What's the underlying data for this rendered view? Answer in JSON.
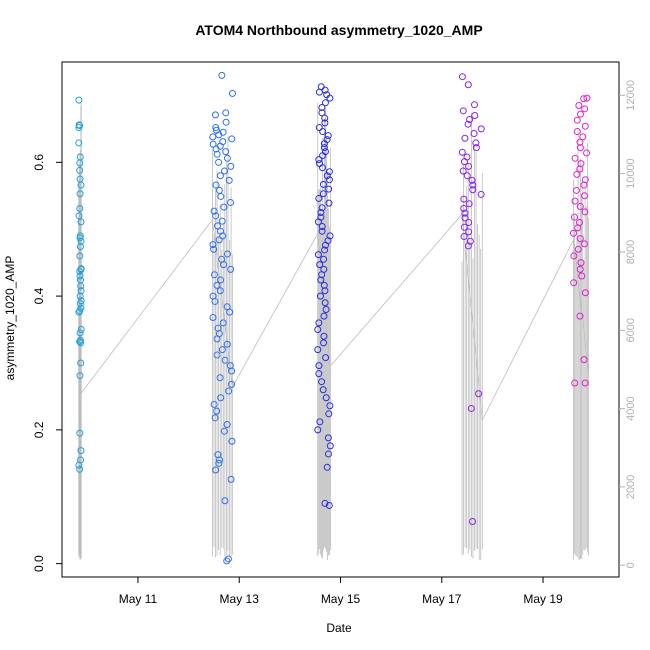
{
  "chart_data": {
    "type": "scatter",
    "title": "ATOM4 Northbound asymmetry_1020_AMP",
    "xlabel": "Date",
    "ylabel": "asymmetry_1020_AMP",
    "x_ticks": [
      "May 11",
      "May 13",
      "May 15",
      "May 17",
      "May 19"
    ],
    "x_tick_days": [
      11,
      13,
      15,
      17,
      19
    ],
    "xlim_days": [
      9.5,
      20.5
    ],
    "ylim": [
      -0.02,
      0.75
    ],
    "y_ticks": [
      0.0,
      0.2,
      0.4,
      0.6
    ],
    "y_tick_labels": [
      "0.0",
      "0.2",
      "0.4",
      "0.6"
    ],
    "y2_ticks": [
      0,
      2000,
      4000,
      6000,
      8000,
      10000,
      12000
    ],
    "y2_tick_labels": [
      "0",
      "2000",
      "4000",
      "6000",
      "8000",
      "10000",
      "12000"
    ],
    "y2lim": [
      -300,
      12850
    ],
    "grid": false,
    "point_style": "open circles",
    "secondary_series_color": "#bdbdbd",
    "series": [
      {
        "color": "#1e9fe0",
        "day_range": [
          9.83,
          9.88
        ],
        "values": [
          0.693,
          0.652,
          0.656,
          0.655,
          0.629,
          0.608,
          0.599,
          0.588,
          0.575,
          0.566,
          0.553,
          0.531,
          0.52,
          0.511,
          0.49,
          0.487,
          0.482,
          0.474,
          0.46,
          0.441,
          0.44,
          0.437,
          0.43,
          0.424,
          0.415,
          0.408,
          0.4,
          0.393,
          0.389,
          0.382,
          0.378,
          0.376,
          0.35,
          0.345,
          0.334,
          0.332,
          0.33,
          0.3,
          0.281,
          0.195,
          0.169,
          0.155,
          0.147,
          0.141
        ]
      },
      {
        "color": "#2f6ff0",
        "day_range": [
          12.47,
          12.87
        ],
        "values": [
          0.73,
          0.703,
          0.674,
          0.671,
          0.66,
          0.652,
          0.648,
          0.645,
          0.641,
          0.638,
          0.635,
          0.631,
          0.627,
          0.624,
          0.62,
          0.616,
          0.612,
          0.606,
          0.6,
          0.594,
          0.587,
          0.58,
          0.573,
          0.566,
          0.558,
          0.549,
          0.54,
          0.533,
          0.527,
          0.52,
          0.512,
          0.505,
          0.497,
          0.49,
          0.484,
          0.477,
          0.47,
          0.463,
          0.455,
          0.447,
          0.44,
          0.432,
          0.424,
          0.416,
          0.408,
          0.4,
          0.392,
          0.384,
          0.376,
          0.368,
          0.36,
          0.352,
          0.344,
          0.336,
          0.328,
          0.32,
          0.312,
          0.304,
          0.296,
          0.288,
          0.278,
          0.268,
          0.258,
          0.248,
          0.238,
          0.228,
          0.218,
          0.208,
          0.198,
          0.183,
          0.163,
          0.155,
          0.15,
          0.14,
          0.126,
          0.094,
          0.007,
          0.004
        ]
      },
      {
        "color": "#2a2ee0",
        "day_range": [
          14.55,
          14.8
        ],
        "values": [
          0.713,
          0.708,
          0.705,
          0.701,
          0.696,
          0.689,
          0.682,
          0.674,
          0.666,
          0.659,
          0.652,
          0.646,
          0.64,
          0.634,
          0.628,
          0.622,
          0.616,
          0.61,
          0.604,
          0.598,
          0.592,
          0.586,
          0.58,
          0.574,
          0.567,
          0.56,
          0.553,
          0.546,
          0.539,
          0.532,
          0.525,
          0.518,
          0.511,
          0.504,
          0.497,
          0.49,
          0.483,
          0.476,
          0.469,
          0.462,
          0.455,
          0.447,
          0.44,
          0.432,
          0.424,
          0.416,
          0.408,
          0.4,
          0.39,
          0.38,
          0.37,
          0.36,
          0.35,
          0.34,
          0.33,
          0.32,
          0.308,
          0.296,
          0.284,
          0.272,
          0.26,
          0.248,
          0.236,
          0.224,
          0.212,
          0.2,
          0.188,
          0.176,
          0.164,
          0.144,
          0.09,
          0.087
        ]
      },
      {
        "color": "#8a22e8",
        "day_range": [
          17.4,
          17.8
        ],
        "values": [
          0.728,
          0.716,
          0.686,
          0.677,
          0.67,
          0.664,
          0.657,
          0.65,
          0.643,
          0.636,
          0.629,
          0.622,
          0.615,
          0.608,
          0.601,
          0.594,
          0.587,
          0.58,
          0.573,
          0.566,
          0.559,
          0.552,
          0.545,
          0.538,
          0.531,
          0.524,
          0.517,
          0.51,
          0.503,
          0.496,
          0.489,
          0.482,
          0.475,
          0.254,
          0.232,
          0.063
        ]
      },
      {
        "color": "#e020d0",
        "day_range": [
          19.6,
          19.9
        ],
        "values": [
          0.696,
          0.695,
          0.685,
          0.68,
          0.672,
          0.663,
          0.654,
          0.646,
          0.638,
          0.63,
          0.622,
          0.614,
          0.606,
          0.598,
          0.59,
          0.582,
          0.574,
          0.566,
          0.558,
          0.55,
          0.542,
          0.534,
          0.526,
          0.518,
          0.51,
          0.502,
          0.494,
          0.486,
          0.478,
          0.47,
          0.46,
          0.45,
          0.44,
          0.43,
          0.42,
          0.405,
          0.37,
          0.305,
          0.27,
          0.27
        ]
      }
    ]
  }
}
